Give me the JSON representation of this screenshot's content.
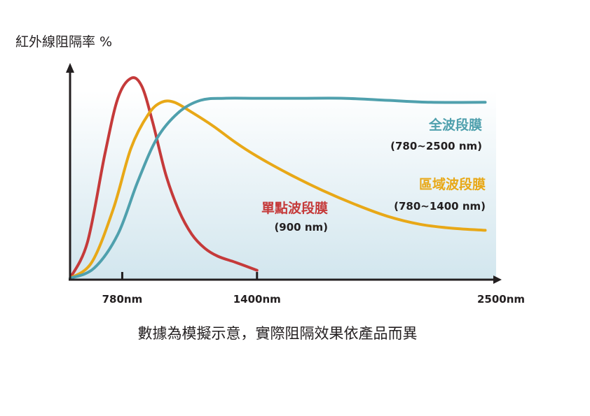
{
  "chart_data": {
    "type": "line",
    "ylabel": "紅外線阻隔率 %",
    "xlabel": "",
    "x_ticks": [
      {
        "label": "780nm",
        "value": 780
      },
      {
        "label": "1400nm",
        "value": 1400
      },
      {
        "label": "2500nm",
        "value": 2500
      }
    ],
    "xlim": [
      540,
      2500
    ],
    "ylim": [
      0,
      100
    ],
    "grid": false,
    "series": [
      {
        "name": "單點波段膜",
        "range_label": "(900 nm)",
        "color": "#c53a3a",
        "x": [
          540,
          620,
          700,
          760,
          820,
          870,
          920,
          980,
          1040,
          1100,
          1160,
          1220,
          1300,
          1400
        ],
        "y": [
          0,
          18,
          62,
          90,
          100,
          96,
          78,
          52,
          34,
          22,
          15,
          11,
          8,
          4
        ]
      },
      {
        "name": "區域波段膜",
        "range_label": "(780~1400 nm)",
        "color": "#e8a817",
        "x": [
          540,
          640,
          740,
          820,
          900,
          960,
          1020,
          1100,
          1200,
          1300,
          1400,
          1550,
          1700,
          1850,
          2000,
          2150,
          2300,
          2450
        ],
        "y": [
          0,
          8,
          35,
          65,
          82,
          88,
          88,
          83,
          76,
          68,
          61,
          52,
          44,
          37,
          31,
          27,
          25,
          24
        ]
      },
      {
        "name": "全波段膜",
        "range_label": "(780~2500 nm)",
        "color": "#4fa0ad",
        "x": [
          540,
          650,
          760,
          850,
          940,
          1040,
          1140,
          1250,
          1400,
          1600,
          1800,
          2000,
          2200,
          2450
        ],
        "y": [
          0,
          5,
          22,
          48,
          70,
          83,
          89,
          90,
          90,
          90,
          90,
          89,
          88,
          88
        ]
      }
    ]
  },
  "footnote": "數據為模擬示意，實際阻隔效果依產品而異"
}
